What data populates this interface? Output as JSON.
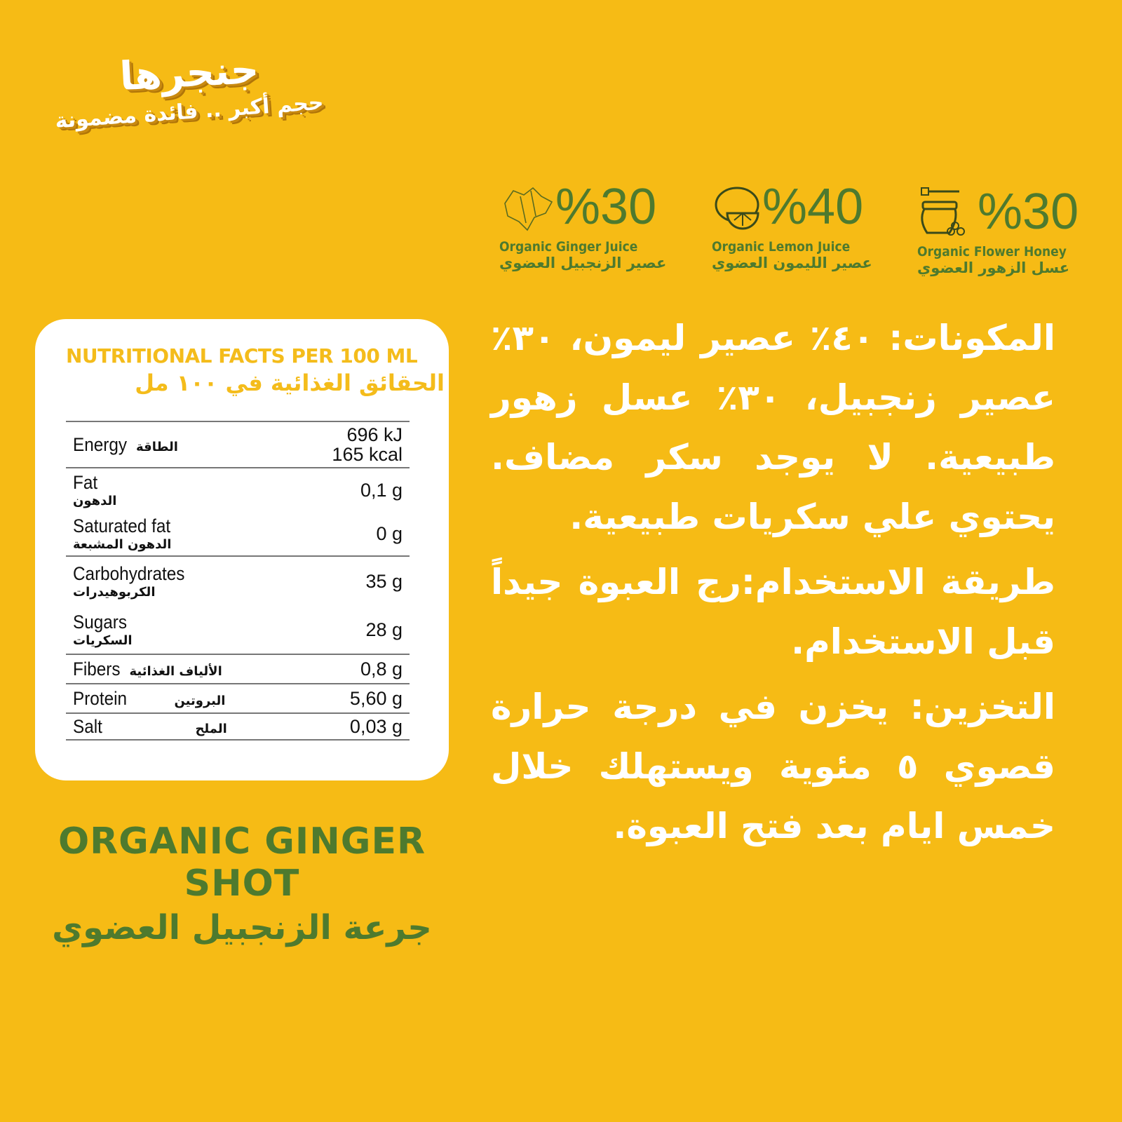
{
  "brand": {
    "name": "جنجرها",
    "tagline": "حجم أكبر .. فائدة مضمونة"
  },
  "colors": {
    "background": "#F6BB15",
    "green": "#4E7A2E",
    "title_yellow": "#F4BC1B",
    "card": "#FFFFFF"
  },
  "ingredients": [
    {
      "icon": "ginger-icon",
      "percent": "%30",
      "label_en": "Organic Ginger Juice",
      "label_ar": "عصير الزنجبيل العضوي"
    },
    {
      "icon": "lemon-icon",
      "percent": "%40",
      "label_en": "Organic Lemon Juice",
      "label_ar": "عصير الليمون العضوي"
    },
    {
      "icon": "honey-jar-icon",
      "percent": "%30",
      "label_en": "Organic Flower Honey",
      "label_ar": "عسل الزهور العضوي"
    }
  ],
  "nutrition": {
    "title_en": "NUTRITIONAL FACTS PER 100 ML",
    "title_ar": "الحقائق الغذائية في ١٠٠ مل",
    "rows": [
      {
        "en": "Energy",
        "ar": "الطاقة",
        "value": "696 kJ",
        "value2": "165 kcal"
      },
      {
        "en": "Fat",
        "ar": "الدهون",
        "value": "0,1 g"
      },
      {
        "en": "Saturated fat",
        "ar": "الدهون المشبعة",
        "value": "0 g"
      },
      {
        "en": "Carbohydrates",
        "ar": "الكربوهيدرات",
        "value": "35 g"
      },
      {
        "en": "Sugars",
        "ar": "السكريات",
        "value": "28 g"
      },
      {
        "en": "Fibers",
        "ar": "الألياف الغذائية",
        "value": "0,8 g"
      },
      {
        "en": "Protein",
        "ar": "البروتين",
        "value": "5,60 g"
      },
      {
        "en": "Salt",
        "ar": "الملح",
        "value": "0,03 g"
      }
    ]
  },
  "product": {
    "name_en": "ORGANIC GINGER SHOT",
    "name_ar": "جرعة الزنجبيل العضوي"
  },
  "description": {
    "ingredients": "المكونات: ٤٠٪ عصير ليمون، ٣٠٪ عصير زنجبيل، ٣٠٪ عسل زهور طبيعية. لا يوجد سكر مضاف. يحتوي علي سكريات طبيعية.",
    "usage": "طريقة الاستخدام:رج العبوة جيداً قبل الاستخدام.",
    "storage": "التخزين: يخزن في درجة حرارة قصوي ٥ مئوية ويستهلك خلال خمس ايام بعد فتح العبوة."
  }
}
